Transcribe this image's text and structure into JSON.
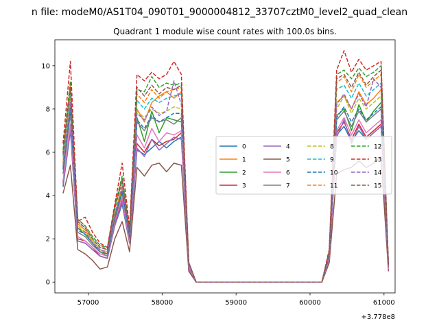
{
  "figure": {
    "suptitle": "n file: modeM0/AS1T04_090T01_9000004812_33707cztM0_level2_quad_clean",
    "offset_label": "+3.778e8"
  },
  "chart_data": {
    "type": "line",
    "title": "Quadrant 1 module wise count rates with 100.0s bins.",
    "xlabel": "",
    "ylabel": "",
    "x_offset": 377800000,
    "xlim": [
      56550,
      61150
    ],
    "ylim": [
      -0.5,
      11.2
    ],
    "xticks": [
      57000,
      58000,
      59000,
      60000,
      61000
    ],
    "xtick_labels": [
      "57000",
      "58000",
      "59000",
      "60000",
      "61000"
    ],
    "yticks": [
      0,
      2,
      4,
      6,
      8,
      10
    ],
    "ytick_labels": [
      "0",
      "2",
      "4",
      "6",
      "8",
      "10"
    ],
    "grid": false,
    "legend": {
      "placement": "center-right",
      "columns": 4
    },
    "x": [
      56660,
      56760,
      56860,
      56960,
      57060,
      57160,
      57260,
      57360,
      57460,
      57560,
      57660,
      57760,
      57860,
      57960,
      58060,
      58160,
      58260,
      58360,
      58460,
      58560,
      58660,
      58760,
      58860,
      58960,
      59060,
      59160,
      59260,
      59360,
      59460,
      59560,
      59660,
      59760,
      59860,
      59960,
      60060,
      60160,
      60260,
      60360,
      60460,
      60560,
      60660,
      60760,
      60860,
      60960,
      61060
    ],
    "series": [
      {
        "name": "0",
        "color": "#1f77b4",
        "dash": false,
        "values": [
          4.4,
          7.0,
          1.9,
          1.8,
          1.5,
          1.2,
          1.1,
          2.6,
          3.6,
          1.8,
          6.1,
          5.9,
          6.2,
          6.5,
          6.2,
          6.5,
          6.7,
          0.6,
          0,
          0,
          0,
          0,
          0,
          0,
          0,
          0,
          0,
          0,
          0,
          0,
          0,
          0,
          0,
          0,
          0,
          0,
          1.0,
          6.8,
          7.2,
          6.5,
          7.0,
          6.6,
          6.9,
          7.2,
          0.6
        ]
      },
      {
        "name": "1",
        "color": "#ff7f0e",
        "dash": false,
        "values": [
          5.6,
          8.5,
          2.7,
          2.4,
          1.9,
          1.5,
          1.3,
          3.1,
          4.4,
          2.2,
          8.0,
          7.4,
          8.3,
          8.6,
          8.8,
          8.5,
          8.8,
          0.8,
          0,
          0,
          0,
          0,
          0,
          0,
          0,
          0,
          0,
          0,
          0,
          0,
          0,
          0,
          0,
          0,
          0,
          0,
          1.3,
          8.3,
          8.6,
          8.0,
          8.8,
          8.2,
          8.5,
          8.9,
          0.7
        ]
      },
      {
        "name": "2",
        "color": "#2ca02c",
        "dash": false,
        "values": [
          5.3,
          8.1,
          2.5,
          2.2,
          1.8,
          1.4,
          1.3,
          3.0,
          4.2,
          2.1,
          7.6,
          6.5,
          7.9,
          6.9,
          7.6,
          7.5,
          7.4,
          0.8,
          0,
          0,
          0,
          0,
          0,
          0,
          0,
          0,
          0,
          0,
          0,
          0,
          0,
          0,
          0,
          0,
          0,
          0,
          1.2,
          7.7,
          8.0,
          7.0,
          8.2,
          7.4,
          7.9,
          8.3,
          0.7
        ]
      },
      {
        "name": "3",
        "color": "#d62728",
        "dash": false,
        "values": [
          4.6,
          7.2,
          2.0,
          1.9,
          1.6,
          1.2,
          1.1,
          2.7,
          3.8,
          1.9,
          6.4,
          6.0,
          6.6,
          6.3,
          6.5,
          6.6,
          6.9,
          0.7,
          0,
          0,
          0,
          0,
          0,
          0,
          0,
          0,
          0,
          0,
          0,
          0,
          0,
          0,
          0,
          0,
          0,
          0,
          1.0,
          6.9,
          7.4,
          6.6,
          7.3,
          6.7,
          7.0,
          7.3,
          0.6
        ]
      },
      {
        "name": "4",
        "color": "#9467bd",
        "dash": false,
        "values": [
          4.5,
          7.1,
          1.9,
          1.8,
          1.5,
          1.2,
          1.1,
          2.6,
          3.7,
          1.8,
          6.2,
          5.8,
          6.6,
          6.1,
          6.4,
          6.7,
          6.6,
          0.6,
          0,
          0,
          0,
          0,
          0,
          0,
          0,
          0,
          0,
          0,
          0,
          0,
          0,
          0,
          0,
          0,
          0,
          0,
          1.0,
          6.7,
          7.5,
          6.4,
          7.2,
          6.6,
          6.9,
          7.2,
          0.6
        ]
      },
      {
        "name": "5",
        "color": "#8c564b",
        "dash": false,
        "values": [
          4.1,
          5.4,
          1.5,
          1.3,
          1.0,
          0.6,
          0.7,
          2.0,
          2.8,
          1.4,
          5.3,
          4.9,
          5.4,
          5.5,
          5.1,
          5.5,
          5.4,
          0.5,
          0,
          0,
          0,
          0,
          0,
          0,
          0,
          0,
          0,
          0,
          0,
          0,
          0,
          0,
          0,
          0,
          0,
          0,
          0.9,
          5.0,
          5.2,
          5.3,
          5.6,
          5.3,
          5.5,
          5.8,
          0.5
        ]
      },
      {
        "name": "6",
        "color": "#e377c2",
        "dash": false,
        "values": [
          4.7,
          7.3,
          2.1,
          1.9,
          1.6,
          1.3,
          1.2,
          2.8,
          3.9,
          1.9,
          6.8,
          6.2,
          7.1,
          6.5,
          6.9,
          6.8,
          7.0,
          0.7,
          0,
          0,
          0,
          0,
          0,
          0,
          0,
          0,
          0,
          0,
          0,
          0,
          0,
          0,
          0,
          0,
          0,
          0,
          1.1,
          7.0,
          7.6,
          6.8,
          7.5,
          6.9,
          7.2,
          7.5,
          0.6
        ]
      },
      {
        "name": "7",
        "color": "#7f7f7f",
        "dash": false,
        "values": [
          5.0,
          7.8,
          2.3,
          2.1,
          1.7,
          1.4,
          1.2,
          2.9,
          4.1,
          2.0,
          7.4,
          7.0,
          7.6,
          7.4,
          7.5,
          7.3,
          7.6,
          0.8,
          0,
          0,
          0,
          0,
          0,
          0,
          0,
          0,
          0,
          0,
          0,
          0,
          0,
          0,
          0,
          0,
          0,
          0,
          1.2,
          7.5,
          7.9,
          7.2,
          7.9,
          7.4,
          7.7,
          8.0,
          0.7
        ]
      },
      {
        "name": "8",
        "color": "#bcbd22",
        "dash": true,
        "values": [
          5.5,
          8.4,
          2.6,
          2.3,
          1.9,
          1.5,
          1.4,
          3.2,
          4.5,
          2.2,
          7.9,
          7.6,
          8.0,
          7.8,
          7.9,
          8.1,
          8.0,
          0.8,
          0,
          0,
          0,
          0,
          0,
          0,
          0,
          0,
          0,
          0,
          0,
          0,
          0,
          0,
          0,
          0,
          0,
          0,
          1.3,
          8.0,
          8.6,
          7.8,
          8.5,
          8.0,
          8.3,
          8.6,
          0.7
        ]
      },
      {
        "name": "9",
        "color": "#17becf",
        "dash": true,
        "values": [
          5.8,
          8.8,
          2.8,
          2.5,
          2.0,
          1.6,
          1.5,
          3.4,
          4.7,
          2.3,
          8.4,
          8.0,
          8.5,
          8.3,
          8.5,
          8.6,
          8.7,
          0.9,
          0,
          0,
          0,
          0,
          0,
          0,
          0,
          0,
          0,
          0,
          0,
          0,
          0,
          0,
          0,
          0,
          0,
          0,
          1.4,
          8.9,
          9.1,
          8.5,
          9.2,
          8.6,
          8.9,
          9.2,
          0.7
        ]
      },
      {
        "name": "10",
        "color": "#1f77b4",
        "dash": true,
        "values": [
          5.2,
          8.0,
          2.4,
          2.2,
          1.8,
          1.4,
          1.3,
          3.0,
          4.2,
          2.1,
          7.5,
          7.1,
          7.7,
          7.4,
          7.6,
          7.8,
          7.8,
          0.8,
          0,
          0,
          0,
          0,
          0,
          0,
          0,
          0,
          0,
          0,
          0,
          0,
          0,
          0,
          0,
          0,
          0,
          0,
          1.2,
          7.6,
          8.1,
          7.4,
          8.0,
          7.5,
          7.8,
          8.1,
          0.7
        ]
      },
      {
        "name": "11",
        "color": "#ff7f0e",
        "dash": true,
        "values": [
          6.0,
          9.1,
          2.9,
          2.6,
          2.1,
          1.7,
          1.5,
          3.5,
          4.8,
          2.4,
          8.7,
          8.3,
          8.9,
          8.5,
          8.8,
          8.9,
          9.0,
          0.9,
          0,
          0,
          0,
          0,
          0,
          0,
          0,
          0,
          0,
          0,
          0,
          0,
          0,
          0,
          0,
          0,
          0,
          0,
          1.4,
          9.2,
          9.5,
          8.8,
          9.6,
          9.0,
          9.3,
          9.6,
          0.8
        ]
      },
      {
        "name": "12",
        "color": "#2ca02c",
        "dash": true,
        "values": [
          6.1,
          9.3,
          2.9,
          2.6,
          2.1,
          1.7,
          1.6,
          3.5,
          4.9,
          2.4,
          8.9,
          8.8,
          9.5,
          9.0,
          9.2,
          9.1,
          9.2,
          0.9,
          0,
          0,
          0,
          0,
          0,
          0,
          0,
          0,
          0,
          0,
          0,
          0,
          0,
          0,
          0,
          0,
          0,
          0,
          1.5,
          9.6,
          9.8,
          9.4,
          9.9,
          9.5,
          9.7,
          10.0,
          0.8
        ]
      },
      {
        "name": "13",
        "color": "#d62728",
        "dash": true,
        "values": [
          6.4,
          10.2,
          2.8,
          3.0,
          2.3,
          1.8,
          1.6,
          3.6,
          5.5,
          2.5,
          9.6,
          9.3,
          9.7,
          9.4,
          9.6,
          10.2,
          9.6,
          0.9,
          0,
          0,
          0,
          0,
          0,
          0,
          0,
          0,
          0,
          0,
          0,
          0,
          0,
          0,
          0,
          0,
          0,
          0,
          1.5,
          9.8,
          10.7,
          9.7,
          10.3,
          9.8,
          10.0,
          10.2,
          0.8
        ]
      },
      {
        "name": "14",
        "color": "#9467bd",
        "dash": true,
        "values": [
          5.4,
          8.3,
          2.5,
          2.3,
          1.8,
          1.5,
          1.4,
          3.1,
          4.4,
          2.2,
          7.8,
          7.5,
          8.1,
          7.7,
          7.9,
          9.3,
          8.2,
          0.8,
          0,
          0,
          0,
          0,
          0,
          0,
          0,
          0,
          0,
          0,
          0,
          0,
          0,
          0,
          0,
          0,
          0,
          0,
          1.3,
          8.2,
          8.7,
          8.0,
          8.7,
          8.1,
          9.4,
          9.0,
          0.7
        ]
      },
      {
        "name": "15",
        "color": "#8c564b",
        "dash": true,
        "values": [
          5.9,
          9.0,
          2.8,
          2.5,
          2.0,
          1.6,
          1.5,
          3.4,
          4.7,
          2.3,
          9.0,
          8.6,
          9.1,
          8.7,
          9.0,
          8.9,
          9.1,
          0.9,
          0,
          0,
          0,
          0,
          0,
          0,
          0,
          0,
          0,
          0,
          0,
          0,
          0,
          0,
          0,
          0,
          0,
          0,
          1.4,
          9.4,
          9.6,
          9.0,
          9.7,
          9.1,
          9.5,
          9.8,
          0.8
        ]
      }
    ]
  }
}
